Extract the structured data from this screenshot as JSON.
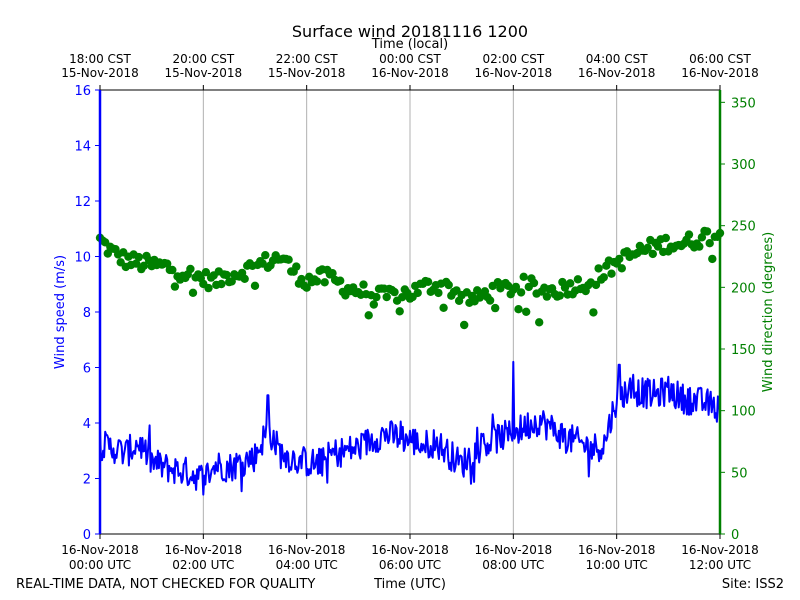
{
  "chart_data": {
    "type": "line",
    "title": "Surface wind 20181116 1200",
    "top_xlabel": "Time (local)",
    "xlabel": "Time (UTC)",
    "ylabel_left": "Wind speed (m/s)",
    "ylabel_right": "Wind direction (degrees)",
    "xlim_hours_utc": [
      0,
      12
    ],
    "ylim_left": [
      0,
      16
    ],
    "ylim_right": [
      0,
      360
    ],
    "grid": "vertical",
    "left_ticks": [
      0,
      2,
      4,
      6,
      8,
      10,
      12,
      14,
      16
    ],
    "right_ticks": [
      0,
      50,
      100,
      150,
      200,
      250,
      300,
      350
    ],
    "bottom_ticks": [
      {
        "hour": 0,
        "line1": "16-Nov-2018",
        "line2": "00:00 UTC"
      },
      {
        "hour": 2,
        "line1": "16-Nov-2018",
        "line2": "02:00 UTC"
      },
      {
        "hour": 4,
        "line1": "16-Nov-2018",
        "line2": "04:00 UTC"
      },
      {
        "hour": 6,
        "line1": "16-Nov-2018",
        "line2": "06:00 UTC"
      },
      {
        "hour": 8,
        "line1": "16-Nov-2018",
        "line2": "08:00 UTC"
      },
      {
        "hour": 10,
        "line1": "16-Nov-2018",
        "line2": "10:00 UTC"
      },
      {
        "hour": 12,
        "line1": "16-Nov-2018",
        "line2": "12:00 UTC"
      }
    ],
    "top_ticks": [
      {
        "hour": 0,
        "line1": "18:00 CST",
        "line2": "15-Nov-2018"
      },
      {
        "hour": 2,
        "line1": "20:00 CST",
        "line2": "15-Nov-2018"
      },
      {
        "hour": 4,
        "line1": "22:00 CST",
        "line2": "15-Nov-2018"
      },
      {
        "hour": 6,
        "line1": "00:00 CST",
        "line2": "16-Nov-2018"
      },
      {
        "hour": 8,
        "line1": "02:00 CST",
        "line2": "16-Nov-2018"
      },
      {
        "hour": 10,
        "line1": "04:00 CST",
        "line2": "16-Nov-2018"
      },
      {
        "hour": 12,
        "line1": "06:00 CST",
        "line2": "16-Nov-2018"
      }
    ],
    "series": [
      {
        "name": "Wind speed",
        "axis": "left",
        "style": "line",
        "color": "#0000ff",
        "x_hours": [
          0,
          0.25,
          0.5,
          0.75,
          1,
          1.25,
          1.5,
          1.75,
          2,
          2.25,
          2.5,
          2.75,
          3,
          3.25,
          3.5,
          3.75,
          4,
          4.25,
          4.5,
          4.75,
          5,
          5.25,
          5.5,
          5.75,
          6,
          6.25,
          6.5,
          6.75,
          7,
          7.25,
          7.5,
          7.75,
          8,
          8.25,
          8.5,
          8.75,
          9,
          9.25,
          9.5,
          9.75,
          10,
          10.25,
          10.5,
          10.75,
          11,
          11.25,
          11.5,
          11.75,
          12
        ],
        "values": [
          3.2,
          3.1,
          2.9,
          3.3,
          2.6,
          2.4,
          2.3,
          2.2,
          2.0,
          2.5,
          2.4,
          2.6,
          2.8,
          3.8,
          2.9,
          2.7,
          2.6,
          2.5,
          2.9,
          3.0,
          3.1,
          3.4,
          3.6,
          3.5,
          3.4,
          3.2,
          3.3,
          2.9,
          2.5,
          3.0,
          3.3,
          3.5,
          3.6,
          3.9,
          4.1,
          3.8,
          3.5,
          3.3,
          3.1,
          3.2,
          4.9,
          5.2,
          5.1,
          5.0,
          5.2,
          4.9,
          4.8,
          4.7,
          4.5
        ],
        "spikes": [
          {
            "x": 8.0,
            "value": 6.2
          },
          {
            "x": 3.25,
            "value": 5.0
          },
          {
            "x": 10.05,
            "value": 6.1
          }
        ]
      },
      {
        "name": "Wind direction",
        "axis": "right",
        "style": "markers",
        "color": "#008000",
        "x_hours": [
          0,
          0.25,
          0.5,
          0.75,
          1,
          1.25,
          1.5,
          1.75,
          2,
          2.25,
          2.5,
          2.75,
          3,
          3.25,
          3.5,
          3.75,
          4,
          4.25,
          4.5,
          4.75,
          5,
          5.25,
          5.5,
          5.75,
          6,
          6.25,
          6.5,
          6.75,
          7,
          7.25,
          7.5,
          7.75,
          8,
          8.25,
          8.5,
          8.75,
          9,
          9.25,
          9.5,
          9.75,
          10,
          10.25,
          10.5,
          10.75,
          11,
          11.25,
          11.5,
          11.75,
          12
        ],
        "values": [
          238,
          228,
          222,
          220,
          218,
          217,
          214,
          210,
          207,
          205,
          210,
          213,
          217,
          221,
          225,
          213,
          205,
          208,
          207,
          200,
          197,
          195,
          192,
          195,
          195,
          200,
          202,
          200,
          193,
          190,
          195,
          198,
          200,
          202,
          198,
          197,
          200,
          202,
          205,
          212,
          220,
          225,
          230,
          233,
          236,
          235,
          238,
          242,
          243
        ]
      }
    ]
  },
  "footer": {
    "left": "REAL-TIME DATA, NOT CHECKED FOR QUALITY",
    "right": "Site: ISS2"
  },
  "colors": {
    "speed": "#0000ff",
    "direction": "#008000",
    "grid": "#b0b0b0",
    "text": "#000000"
  }
}
